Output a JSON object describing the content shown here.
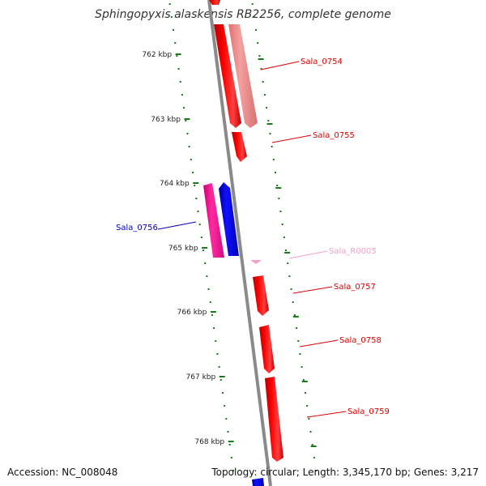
{
  "title": "Sphingopyxis alaskensis RB2256, complete genome",
  "footer": {
    "accession": "Accession: NC_008048",
    "summary": "Topology: circular; Length: 3,345,170 bp; Genes: 3,217"
  },
  "colors": {
    "backbone": "#888888",
    "tick": "#1a7a1a",
    "forward_cds": "#ff0000",
    "forward_cds_faded": "#f08080",
    "reverse_cds": "#0000ff",
    "reverse_magenta": "#ff1493",
    "rna": "#f4a0c8"
  },
  "ticks": [
    {
      "label": "762 kbp"
    },
    {
      "label": "763 kbp"
    },
    {
      "label": "764 kbp"
    },
    {
      "label": "765 kbp"
    },
    {
      "label": "766 kbp"
    },
    {
      "label": "767 kbp"
    },
    {
      "label": "768 kbp"
    }
  ],
  "genes": [
    {
      "name": "Sala_0754",
      "color": "#dd0000"
    },
    {
      "name": "Sala_0755",
      "color": "#dd0000"
    },
    {
      "name": "Sala_0756",
      "color": "#0000bb"
    },
    {
      "name": "Sala_R0005",
      "color": "#f4a0c8"
    },
    {
      "name": "Sala_0757",
      "color": "#dd0000"
    },
    {
      "name": "Sala_0758",
      "color": "#dd0000"
    },
    {
      "name": "Sala_0759",
      "color": "#dd0000"
    }
  ]
}
